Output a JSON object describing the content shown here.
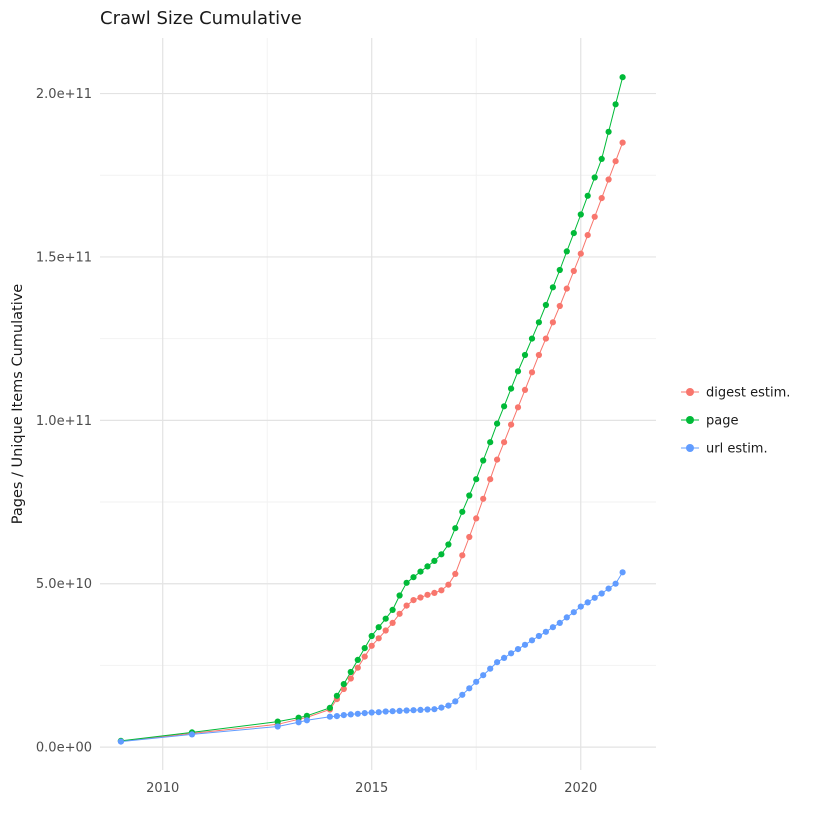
{
  "chart_data": {
    "type": "scatter",
    "title": "Crawl Size Cumulative",
    "ylabel": "Pages / Unique Items Cumulative",
    "xlabel": "",
    "grid": true,
    "legend_position": "right",
    "y_values_unit": "1e9",
    "x_range": [
      2008.5,
      2021.8
    ],
    "y_range_billions": [
      -7,
      217
    ],
    "x_ticks": [
      {
        "v": 2010,
        "label": "2010"
      },
      {
        "v": 2015,
        "label": "2015"
      },
      {
        "v": 2020,
        "label": "2020"
      }
    ],
    "y_ticks": [
      {
        "v": 0,
        "label": "0.0e+00"
      },
      {
        "v": 50,
        "label": "5.0e+10"
      },
      {
        "v": 100,
        "label": "1.0e+11"
      },
      {
        "v": 150,
        "label": "1.5e+11"
      },
      {
        "v": 200,
        "label": "2.0e+11"
      }
    ],
    "x_minor_ticks": [
      2012.5,
      2017.5
    ],
    "y_minor_ticks": [
      25,
      75,
      125,
      175
    ],
    "colors": {
      "grid_major": "#e3e3e3",
      "grid_minor": "#f2f2f2",
      "background": "#ffffff",
      "axis_text": "#4d4d4d",
      "text": "#1a1a1a"
    },
    "series": [
      {
        "name": "digest estim.",
        "color": "#F8766D",
        "points": [
          [
            2009.0,
            1.8
          ],
          [
            2010.7,
            4.2
          ],
          [
            2012.75,
            7.0
          ],
          [
            2013.25,
            8.5
          ],
          [
            2013.45,
            9.1
          ],
          [
            2014.0,
            11.5
          ],
          [
            2014.167,
            14.7
          ],
          [
            2014.333,
            17.8
          ],
          [
            2014.5,
            21.0
          ],
          [
            2014.667,
            24.3
          ],
          [
            2014.833,
            27.7
          ],
          [
            2015.0,
            31.0
          ],
          [
            2015.167,
            33.3
          ],
          [
            2015.333,
            35.7
          ],
          [
            2015.5,
            38.0
          ],
          [
            2015.667,
            40.8
          ],
          [
            2015.833,
            43.3
          ],
          [
            2016.0,
            45.0
          ],
          [
            2016.167,
            45.8
          ],
          [
            2016.333,
            46.6
          ],
          [
            2016.5,
            47.2
          ],
          [
            2016.667,
            48.0
          ],
          [
            2016.833,
            49.7
          ],
          [
            2017.0,
            53.0
          ],
          [
            2017.167,
            58.7
          ],
          [
            2017.333,
            64.3
          ],
          [
            2017.5,
            70.0
          ],
          [
            2017.667,
            76.0
          ],
          [
            2017.833,
            82.0
          ],
          [
            2018.0,
            88.0
          ],
          [
            2018.167,
            93.3
          ],
          [
            2018.333,
            98.7
          ],
          [
            2018.5,
            104.0
          ],
          [
            2018.667,
            109.3
          ],
          [
            2018.833,
            114.7
          ],
          [
            2019.0,
            120.0
          ],
          [
            2019.167,
            125.0
          ],
          [
            2019.333,
            130.0
          ],
          [
            2019.5,
            135.0
          ],
          [
            2019.667,
            140.3
          ],
          [
            2019.833,
            145.7
          ],
          [
            2020.0,
            151.0
          ],
          [
            2020.167,
            156.7
          ],
          [
            2020.333,
            162.3
          ],
          [
            2020.5,
            168.0
          ],
          [
            2020.667,
            173.7
          ],
          [
            2020.833,
            179.3
          ],
          [
            2021.0,
            185.0
          ]
        ]
      },
      {
        "name": "page",
        "color": "#00BA38",
        "points": [
          [
            2009.0,
            1.9
          ],
          [
            2010.7,
            4.5
          ],
          [
            2012.75,
            7.8
          ],
          [
            2013.25,
            9.0
          ],
          [
            2013.45,
            9.6
          ],
          [
            2014.0,
            12.0
          ],
          [
            2014.167,
            15.7
          ],
          [
            2014.333,
            19.3
          ],
          [
            2014.5,
            23.0
          ],
          [
            2014.667,
            26.7
          ],
          [
            2014.833,
            30.3
          ],
          [
            2015.0,
            34.0
          ],
          [
            2015.167,
            36.7
          ],
          [
            2015.333,
            39.3
          ],
          [
            2015.5,
            42.0
          ],
          [
            2015.667,
            46.4
          ],
          [
            2015.833,
            50.3
          ],
          [
            2016.0,
            52.0
          ],
          [
            2016.167,
            53.7
          ],
          [
            2016.333,
            55.3
          ],
          [
            2016.5,
            57.0
          ],
          [
            2016.667,
            59.0
          ],
          [
            2016.833,
            62.0
          ],
          [
            2017.0,
            67.0
          ],
          [
            2017.167,
            72.0
          ],
          [
            2017.333,
            77.0
          ],
          [
            2017.5,
            82.0
          ],
          [
            2017.667,
            87.7
          ],
          [
            2017.833,
            93.3
          ],
          [
            2018.0,
            99.0
          ],
          [
            2018.167,
            104.3
          ],
          [
            2018.333,
            109.7
          ],
          [
            2018.5,
            115.0
          ],
          [
            2018.667,
            120.0
          ],
          [
            2018.833,
            125.0
          ],
          [
            2019.0,
            130.0
          ],
          [
            2019.167,
            135.3
          ],
          [
            2019.333,
            140.7
          ],
          [
            2019.5,
            146.0
          ],
          [
            2019.667,
            151.7
          ],
          [
            2019.833,
            157.3
          ],
          [
            2020.0,
            163.0
          ],
          [
            2020.167,
            168.7
          ],
          [
            2020.333,
            174.3
          ],
          [
            2020.5,
            180.0
          ],
          [
            2020.667,
            188.3
          ],
          [
            2020.833,
            196.7
          ],
          [
            2021.0,
            205.0
          ]
        ]
      },
      {
        "name": "url estim.",
        "color": "#619CFF",
        "points": [
          [
            2009.0,
            1.7
          ],
          [
            2010.7,
            3.9
          ],
          [
            2012.75,
            6.3
          ],
          [
            2013.25,
            7.6
          ],
          [
            2013.45,
            8.2
          ],
          [
            2014.0,
            9.3
          ],
          [
            2014.167,
            9.5
          ],
          [
            2014.333,
            9.8
          ],
          [
            2014.5,
            10.0
          ],
          [
            2014.667,
            10.2
          ],
          [
            2014.833,
            10.4
          ],
          [
            2015.0,
            10.6
          ],
          [
            2015.167,
            10.7
          ],
          [
            2015.333,
            10.9
          ],
          [
            2015.5,
            11.0
          ],
          [
            2015.667,
            11.1
          ],
          [
            2015.833,
            11.2
          ],
          [
            2016.0,
            11.3
          ],
          [
            2016.167,
            11.4
          ],
          [
            2016.333,
            11.5
          ],
          [
            2016.5,
            11.6
          ],
          [
            2016.667,
            12.1
          ],
          [
            2016.833,
            12.7
          ],
          [
            2017.0,
            14.0
          ],
          [
            2017.167,
            16.0
          ],
          [
            2017.333,
            18.0
          ],
          [
            2017.5,
            20.0
          ],
          [
            2017.667,
            22.0
          ],
          [
            2017.833,
            24.0
          ],
          [
            2018.0,
            26.0
          ],
          [
            2018.167,
            27.3
          ],
          [
            2018.333,
            28.7
          ],
          [
            2018.5,
            30.0
          ],
          [
            2018.667,
            31.3
          ],
          [
            2018.833,
            32.7
          ],
          [
            2019.0,
            34.0
          ],
          [
            2019.167,
            35.3
          ],
          [
            2019.333,
            36.7
          ],
          [
            2019.5,
            38.0
          ],
          [
            2019.667,
            39.7
          ],
          [
            2019.833,
            41.3
          ],
          [
            2020.0,
            43.0
          ],
          [
            2020.167,
            44.3
          ],
          [
            2020.333,
            45.7
          ],
          [
            2020.5,
            47.0
          ],
          [
            2020.667,
            48.5
          ],
          [
            2020.833,
            50.0
          ],
          [
            2021.0,
            53.5
          ]
        ]
      }
    ]
  }
}
